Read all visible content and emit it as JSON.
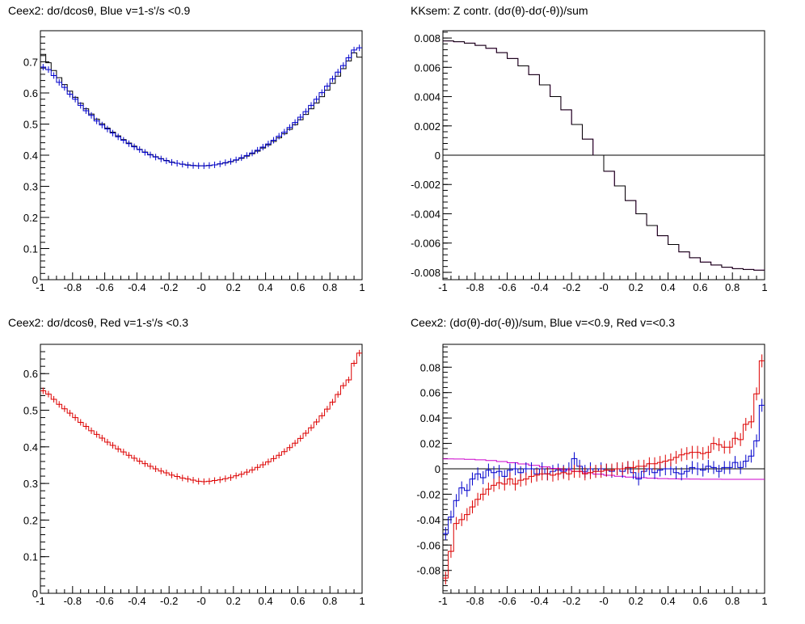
{
  "colors": {
    "black": "#000000",
    "blue": "#0000cc",
    "red": "#dd0000",
    "magenta": "#cc00cc"
  },
  "chart_data": [
    {
      "type": "line",
      "title": "Ceex2: dσ/dcosθ, Blue v=1-s'/s <0.9",
      "xlabel": "",
      "ylabel": "",
      "xlim": [
        -1,
        1
      ],
      "ylim": [
        0,
        0.8
      ],
      "x_ticks": [
        "-1",
        "-0.8",
        "-0.6",
        "-0.4",
        "-0.2",
        "-0",
        "0.2",
        "0.4",
        "0.6",
        "0.8",
        "1"
      ],
      "y_ticks": [
        "0",
        "0.1",
        "0.2",
        "0.3",
        "0.4",
        "0.5",
        "0.6",
        "0.7"
      ],
      "grid": false,
      "series": [
        {
          "color": "black",
          "style": "hist",
          "errors": false,
          "values": [
            0.724,
            0.697,
            0.672,
            0.649,
            0.627,
            0.606,
            0.586,
            0.567,
            0.549,
            0.532,
            0.516,
            0.501,
            0.487,
            0.474,
            0.462,
            0.45,
            0.439,
            0.429,
            0.419,
            0.41,
            0.402,
            0.395,
            0.389,
            0.383,
            0.378,
            0.374,
            0.371,
            0.369,
            0.367,
            0.366,
            0.366,
            0.367,
            0.369,
            0.372,
            0.375,
            0.379,
            0.384,
            0.39,
            0.397,
            0.405,
            0.413,
            0.423,
            0.433,
            0.444,
            0.456,
            0.469,
            0.483,
            0.498,
            0.514,
            0.531,
            0.549,
            0.568,
            0.588,
            0.609,
            0.631,
            0.654,
            0.678,
            0.703,
            0.729,
            0.715
          ]
        },
        {
          "color": "blue",
          "style": "hist",
          "errors": true,
          "values": [
            0.683,
            0.675,
            0.656,
            0.634,
            0.618,
            0.596,
            0.58,
            0.56,
            0.543,
            0.528,
            0.51,
            0.497,
            0.484,
            0.471,
            0.459,
            0.448,
            0.437,
            0.427,
            0.418,
            0.409,
            0.401,
            0.394,
            0.388,
            0.382,
            0.377,
            0.374,
            0.371,
            0.368,
            0.367,
            0.366,
            0.366,
            0.367,
            0.369,
            0.372,
            0.376,
            0.38,
            0.385,
            0.392,
            0.399,
            0.407,
            0.416,
            0.426,
            0.436,
            0.448,
            0.461,
            0.474,
            0.489,
            0.505,
            0.522,
            0.54,
            0.56,
            0.58,
            0.601,
            0.622,
            0.645,
            0.667,
            0.688,
            0.713,
            0.738,
            0.745
          ]
        }
      ]
    },
    {
      "type": "line",
      "title": "KKsem: Z contr. (dσ(θ)-dσ(-θ))/sum",
      "xlabel": "",
      "ylabel": "",
      "xlim": [
        -1,
        1
      ],
      "ylim": [
        -0.0085,
        0.0085
      ],
      "x_ticks": [
        "-1",
        "-0.8",
        "-0.6",
        "-0.4",
        "-0.2",
        "-0",
        "0.2",
        "0.4",
        "0.6",
        "0.8",
        "1"
      ],
      "y_ticks": [
        "-0.008",
        "-0.006",
        "-0.004",
        "-0.002",
        "0",
        "0.002",
        "0.004",
        "0.006",
        "0.008"
      ],
      "grid": false,
      "zero_line": true,
      "series": [
        {
          "color": "magenta",
          "style": "hist",
          "errors": false,
          "values": [
            0.0078,
            0.00775,
            0.00765,
            0.0075,
            0.0073,
            0.007,
            0.0066,
            0.0061,
            0.0055,
            0.0048,
            0.004,
            0.0031,
            0.0021,
            0.0011,
            0.0,
            -0.0011,
            -0.0021,
            -0.0031,
            -0.004,
            -0.0048,
            -0.0055,
            -0.0061,
            -0.0066,
            -0.007,
            -0.0073,
            -0.0075,
            -0.00765,
            -0.00775,
            -0.0078,
            -0.00785
          ]
        },
        {
          "color": "black",
          "style": "hist",
          "errors": false,
          "values": [
            0.0078,
            0.00775,
            0.00765,
            0.0075,
            0.0073,
            0.007,
            0.0066,
            0.0061,
            0.0055,
            0.0048,
            0.004,
            0.0031,
            0.0021,
            0.0011,
            0.0,
            -0.0011,
            -0.0021,
            -0.0031,
            -0.004,
            -0.0048,
            -0.0055,
            -0.0061,
            -0.0066,
            -0.007,
            -0.0073,
            -0.0075,
            -0.00765,
            -0.00775,
            -0.0078,
            -0.00785
          ]
        }
      ]
    },
    {
      "type": "line",
      "title": "Ceex2: dσ/dcosθ, Red v=1-s'/s <0.3",
      "xlabel": "",
      "ylabel": "",
      "xlim": [
        -1,
        1
      ],
      "ylim": [
        0,
        0.68
      ],
      "x_ticks": [
        "-1",
        "-0.8",
        "-0.6",
        "-0.4",
        "-0.2",
        "-0",
        "0.2",
        "0.4",
        "0.6",
        "0.8",
        "1"
      ],
      "y_ticks": [
        "0",
        "0.1",
        "0.2",
        "0.3",
        "0.4",
        "0.5",
        "0.6"
      ],
      "grid": false,
      "series": [
        {
          "color": "red",
          "style": "hist",
          "errors": true,
          "values": [
            0.553,
            0.544,
            0.53,
            0.516,
            0.504,
            0.492,
            0.48,
            0.467,
            0.456,
            0.444,
            0.434,
            0.424,
            0.413,
            0.404,
            0.394,
            0.386,
            0.377,
            0.369,
            0.361,
            0.354,
            0.347,
            0.34,
            0.334,
            0.329,
            0.323,
            0.319,
            0.315,
            0.312,
            0.309,
            0.306,
            0.305,
            0.306,
            0.308,
            0.31,
            0.313,
            0.316,
            0.321,
            0.325,
            0.331,
            0.337,
            0.344,
            0.351,
            0.359,
            0.368,
            0.377,
            0.387,
            0.398,
            0.41,
            0.423,
            0.437,
            0.452,
            0.468,
            0.485,
            0.503,
            0.522,
            0.543,
            0.567,
            0.583,
            0.628,
            0.656
          ]
        }
      ]
    },
    {
      "type": "line",
      "title": "Ceex2: (dσ(θ)-dσ(-θ))/sum, Blue v=<0.9, Red v=<0.3",
      "xlabel": "",
      "ylabel": "",
      "xlim": [
        -1,
        1
      ],
      "ylim": [
        -0.098,
        0.098
      ],
      "x_ticks": [
        "-1",
        "-0.8",
        "-0.6",
        "-0.4",
        "-0.2",
        "-0",
        "0.2",
        "0.4",
        "0.6",
        "0.8",
        "1"
      ],
      "y_ticks": [
        "-0.08",
        "-0.06",
        "-0.04",
        "-0.02",
        "0",
        "0.02",
        "0.04",
        "0.06",
        "0.08"
      ],
      "grid": false,
      "zero_line": true,
      "series": [
        {
          "color": "magenta",
          "style": "hist",
          "errors": false,
          "values": [
            0.0078,
            0.0077,
            0.0075,
            0.0071,
            0.0065,
            0.0057,
            0.0048,
            0.0038,
            0.0027,
            0.0015,
            0.0003,
            -0.0009,
            -0.0021,
            -0.0032,
            -0.0042,
            -0.0051,
            -0.0059,
            -0.0065,
            -0.007,
            -0.0074,
            -0.0077,
            -0.0079,
            -0.008,
            -0.0081,
            -0.0082,
            -0.0082,
            -0.0083,
            -0.0083,
            -0.0083,
            -0.0083
          ]
        },
        {
          "color": "blue",
          "style": "hist",
          "errors": true,
          "values": [
            -0.051,
            -0.038,
            -0.025,
            -0.015,
            -0.017,
            -0.008,
            -0.004,
            -0.007,
            -0.001,
            -0.003,
            -0.002,
            -0.006,
            -0.001,
            0.0,
            -0.003,
            0.0,
            0.0,
            -0.004,
            0.0,
            -0.004,
            -0.002,
            -0.001,
            -0.002,
            0.0,
            0.008,
            0.002,
            -0.002,
            0.0,
            -0.002,
            0.0,
            -0.001,
            -0.002,
            0.0,
            -0.002,
            0.001,
            -0.003,
            -0.008,
            -0.002,
            0.0,
            -0.003,
            -0.001,
            0.0,
            0.0,
            -0.003,
            -0.004,
            -0.002,
            0.001,
            0.0,
            -0.001,
            0.002,
            0.001,
            -0.002,
            0.001,
            0.001,
            0.005,
            0.001,
            0.006,
            0.01,
            0.022,
            0.05
          ]
        },
        {
          "color": "red",
          "style": "hist",
          "errors": true,
          "values": [
            -0.086,
            -0.065,
            -0.043,
            -0.04,
            -0.036,
            -0.03,
            -0.024,
            -0.02,
            -0.016,
            -0.013,
            -0.011,
            -0.012,
            -0.008,
            -0.012,
            -0.009,
            -0.008,
            -0.006,
            -0.005,
            -0.004,
            -0.004,
            -0.005,
            -0.004,
            -0.003,
            -0.004,
            -0.002,
            -0.002,
            -0.004,
            -0.003,
            -0.002,
            -0.002,
            -0.001,
            -0.001,
            0.0,
            0.0,
            0.001,
            0.001,
            0.002,
            0.002,
            0.004,
            0.004,
            0.005,
            0.006,
            0.007,
            0.009,
            0.011,
            0.012,
            0.013,
            0.013,
            0.012,
            0.013,
            0.02,
            0.019,
            0.017,
            0.017,
            0.024,
            0.023,
            0.035,
            0.037,
            0.059,
            0.085
          ]
        }
      ]
    }
  ]
}
